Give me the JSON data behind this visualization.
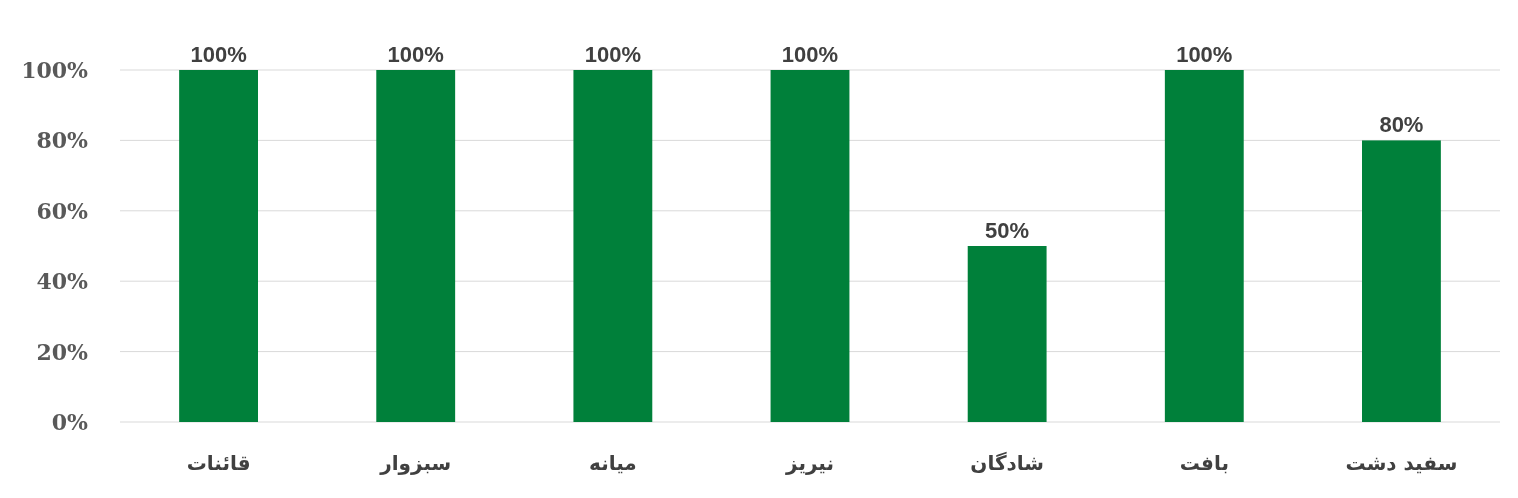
{
  "chart_data": {
    "type": "bar",
    "categories": [
      "قائنات",
      "سبزوار",
      "میانه",
      "نیریز",
      "شادگان",
      "بافت",
      "سفید دشت"
    ],
    "values": [
      100,
      100,
      100,
      100,
      50,
      100,
      80
    ],
    "color": "#00803a",
    "ylim": [
      0,
      100
    ],
    "yticks": [
      {
        "value": 0,
        "label": "0%"
      },
      {
        "value": 20,
        "label": "20%"
      },
      {
        "value": 40,
        "label": "40%"
      },
      {
        "value": 60,
        "label": "60%"
      },
      {
        "value": 80,
        "label": "80%"
      },
      {
        "value": 100,
        "label": "100%"
      }
    ],
    "grid": "y",
    "value_labels": [
      "100%",
      "100%",
      "100%",
      "100%",
      "50%",
      "100%",
      "80%"
    ]
  }
}
